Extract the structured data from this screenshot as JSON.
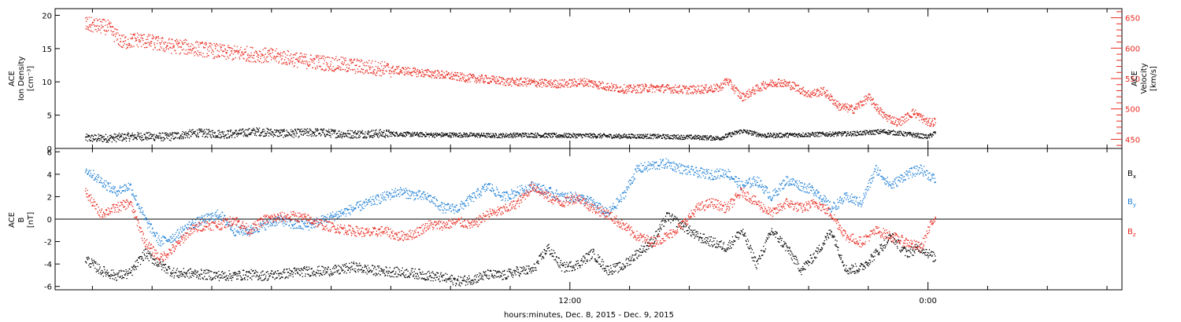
{
  "chart_data": [
    {
      "type": "scatter",
      "panel": "top",
      "left_axis": {
        "label_lines": [
          "ACE",
          "Ion Density",
          "[cm⁻³]"
        ],
        "ylim": [
          0,
          21
        ],
        "ticks": [
          0,
          5,
          10,
          15,
          20
        ]
      },
      "right_axis": {
        "label_lines": [
          "ACE",
          "Velocity",
          "[km/s]"
        ],
        "ylim": [
          435,
          665
        ],
        "ticks": [
          450,
          500,
          550,
          600,
          650
        ],
        "color": "#e8281e"
      },
      "series": [
        {
          "color": "#000000",
          "axis": "left",
          "values": [
            [
              -4.25,
              1.6
            ],
            [
              -3.5,
              1.6
            ],
            [
              -2.5,
              1.9
            ],
            [
              -1.5,
              1.8
            ],
            [
              -0.5,
              2.4
            ],
            [
              0.5,
              2.2
            ],
            [
              1.5,
              2.6
            ],
            [
              2.5,
              2.3
            ],
            [
              3.5,
              2.5
            ],
            [
              4.5,
              2.2
            ],
            [
              5.5,
              2.3
            ],
            [
              6.5,
              2.2
            ],
            [
              7.5,
              2.1
            ],
            [
              8.5,
              2.1
            ],
            [
              9.5,
              2.0
            ],
            [
              10.5,
              2.1
            ],
            [
              11.5,
              2.0
            ],
            [
              12.5,
              2.0
            ],
            [
              13.5,
              1.9
            ],
            [
              14.5,
              1.9
            ],
            [
              15.5,
              1.8
            ],
            [
              16.5,
              1.7
            ],
            [
              17.0,
              1.6
            ],
            [
              17.75,
              2.7
            ],
            [
              18.5,
              2.0
            ],
            [
              19.5,
              2.1
            ],
            [
              20.5,
              2.2
            ],
            [
              21.5,
              2.3
            ],
            [
              22.5,
              2.6
            ],
            [
              23.5,
              2.1
            ],
            [
              24.0,
              1.8
            ],
            [
              24.25,
              2.5
            ]
          ]
        },
        {
          "color": "#e8281e",
          "axis": "right",
          "values": [
            [
              -4.25,
              640
            ],
            [
              -3.5,
              635
            ],
            [
              -3.0,
              610
            ],
            [
              -2.5,
              615
            ],
            [
              -2.0,
              610
            ],
            [
              -1.5,
              605
            ],
            [
              -1.0,
              603
            ],
            [
              -0.5,
              600
            ],
            [
              0.0,
              597
            ],
            [
              0.5,
              593
            ],
            [
              1.0,
              592
            ],
            [
              1.5,
              590
            ],
            [
              2.0,
              588
            ],
            [
              2.5,
              585
            ],
            [
              3.0,
              580
            ],
            [
              3.5,
              578
            ],
            [
              4.0,
              575
            ],
            [
              4.5,
              573
            ],
            [
              5.0,
              570
            ],
            [
              5.5,
              568
            ],
            [
              6.0,
              565
            ],
            [
              6.5,
              563
            ],
            [
              7.0,
              560
            ],
            [
              7.5,
              558
            ],
            [
              8.0,
              555
            ],
            [
              8.5,
              552
            ],
            [
              9.0,
              550
            ],
            [
              9.5,
              548
            ],
            [
              10.0,
              545
            ],
            [
              10.5,
              545
            ],
            [
              11.0,
              543
            ],
            [
              11.5,
              542
            ],
            [
              12.0,
              543
            ],
            [
              12.5,
              545
            ],
            [
              13.0,
              540
            ],
            [
              13.5,
              535
            ],
            [
              14.0,
              533
            ],
            [
              14.5,
              535
            ],
            [
              15.0,
              535
            ],
            [
              16.0,
              532
            ],
            [
              17.0,
              535
            ],
            [
              17.25,
              548
            ],
            [
              17.75,
              520
            ],
            [
              18.5,
              540
            ],
            [
              19.0,
              545
            ],
            [
              19.5,
              538
            ],
            [
              20.0,
              525
            ],
            [
              20.5,
              530
            ],
            [
              21.0,
              505
            ],
            [
              21.5,
              500
            ],
            [
              22.0,
              520
            ],
            [
              22.5,
              490
            ],
            [
              23.0,
              478
            ],
            [
              23.5,
              495
            ],
            [
              24.0,
              478
            ],
            [
              24.25,
              480
            ]
          ]
        }
      ]
    },
    {
      "type": "scatter",
      "panel": "bottom",
      "left_axis": {
        "label_lines": [
          "ACE",
          "B",
          "[nT]"
        ],
        "ylim": [
          -6.3,
          6.3
        ],
        "ticks": [
          -6,
          -4,
          -2,
          0,
          2,
          4,
          6
        ]
      },
      "reference_line": 0,
      "series": [
        {
          "name": "Bx",
          "color": "#000000",
          "values": [
            [
              -4.25,
              -3.5
            ],
            [
              -3.75,
              -4.5
            ],
            [
              -3.25,
              -5.0
            ],
            [
              -2.75,
              -4.8
            ],
            [
              -2.25,
              -3.0
            ],
            [
              -1.75,
              -4.0
            ],
            [
              -1.25,
              -4.8
            ],
            [
              -0.75,
              -4.8
            ],
            [
              -0.25,
              -4.9
            ],
            [
              0.25,
              -5.0
            ],
            [
              0.75,
              -5.0
            ],
            [
              1.25,
              -4.9
            ],
            [
              1.75,
              -5.0
            ],
            [
              2.25,
              -4.9
            ],
            [
              2.75,
              -4.7
            ],
            [
              3.25,
              -4.6
            ],
            [
              3.75,
              -4.6
            ],
            [
              4.25,
              -4.5
            ],
            [
              4.75,
              -4.2
            ],
            [
              5.25,
              -4.5
            ],
            [
              5.75,
              -4.6
            ],
            [
              6.25,
              -4.7
            ],
            [
              6.75,
              -4.8
            ],
            [
              7.25,
              -5.0
            ],
            [
              7.75,
              -5.2
            ],
            [
              8.25,
              -5.5
            ],
            [
              8.75,
              -5.3
            ],
            [
              9.25,
              -4.9
            ],
            [
              9.75,
              -5.0
            ],
            [
              10.25,
              -4.6
            ],
            [
              10.75,
              -4.5
            ],
            [
              11.25,
              -2.5
            ],
            [
              11.75,
              -4.3
            ],
            [
              12.25,
              -4.0
            ],
            [
              12.75,
              -3.0
            ],
            [
              13.25,
              -4.5
            ],
            [
              13.75,
              -4.2
            ],
            [
              14.25,
              -3.0
            ],
            [
              14.75,
              -2.0
            ],
            [
              15.25,
              0.3
            ],
            [
              15.75,
              -0.5
            ],
            [
              16.25,
              -1.5
            ],
            [
              16.75,
              -2.0
            ],
            [
              17.25,
              -2.5
            ],
            [
              17.75,
              -1.0
            ],
            [
              18.25,
              -4.0
            ],
            [
              18.75,
              -1.0
            ],
            [
              19.25,
              -2.5
            ],
            [
              19.75,
              -4.5
            ],
            [
              20.25,
              -3.0
            ],
            [
              20.75,
              -1.0
            ],
            [
              21.25,
              -4.5
            ],
            [
              21.75,
              -4.3
            ],
            [
              22.25,
              -3.0
            ],
            [
              22.75,
              -1.5
            ],
            [
              23.25,
              -3.0
            ],
            [
              23.75,
              -2.5
            ],
            [
              24.25,
              -3.5
            ]
          ]
        },
        {
          "name": "By",
          "color": "#1e7fd6",
          "values": [
            [
              -4.25,
              4.5
            ],
            [
              -3.75,
              3.5
            ],
            [
              -3.25,
              2.5
            ],
            [
              -2.75,
              3.0
            ],
            [
              -2.25,
              0.0
            ],
            [
              -1.75,
              -2.0
            ],
            [
              -1.25,
              -1.5
            ],
            [
              -0.75,
              -0.5
            ],
            [
              -0.25,
              0.0
            ],
            [
              0.25,
              0.5
            ],
            [
              0.75,
              -1.0
            ],
            [
              1.25,
              -1.0
            ],
            [
              1.75,
              -0.5
            ],
            [
              2.25,
              0.0
            ],
            [
              2.75,
              -0.5
            ],
            [
              3.25,
              -0.5
            ],
            [
              3.75,
              0.0
            ],
            [
              4.25,
              0.5
            ],
            [
              4.75,
              1.0
            ],
            [
              5.25,
              1.5
            ],
            [
              5.75,
              2.0
            ],
            [
              6.25,
              2.5
            ],
            [
              6.75,
              2.2
            ],
            [
              7.25,
              2.0
            ],
            [
              7.75,
              1.0
            ],
            [
              8.25,
              1.0
            ],
            [
              8.75,
              2.0
            ],
            [
              9.25,
              3.0
            ],
            [
              9.75,
              2.0
            ],
            [
              10.25,
              2.5
            ],
            [
              10.75,
              3.0
            ],
            [
              11.25,
              2.5
            ],
            [
              11.75,
              2.0
            ],
            [
              12.25,
              2.0
            ],
            [
              12.75,
              1.5
            ],
            [
              13.25,
              0.5
            ],
            [
              13.75,
              2.0
            ],
            [
              14.25,
              4.5
            ],
            [
              14.75,
              4.8
            ],
            [
              15.25,
              5.0
            ],
            [
              15.75,
              4.5
            ],
            [
              16.25,
              4.2
            ],
            [
              16.75,
              4.0
            ],
            [
              17.25,
              4.2
            ],
            [
              17.75,
              3.0
            ],
            [
              18.25,
              3.5
            ],
            [
              18.75,
              2.0
            ],
            [
              19.25,
              3.5
            ],
            [
              19.75,
              3.0
            ],
            [
              20.25,
              2.5
            ],
            [
              20.75,
              1.0
            ],
            [
              21.25,
              2.0
            ],
            [
              21.75,
              1.5
            ],
            [
              22.25,
              4.5
            ],
            [
              22.75,
              3.0
            ],
            [
              23.25,
              4.0
            ],
            [
              23.75,
              4.5
            ],
            [
              24.25,
              3.5
            ]
          ]
        },
        {
          "name": "Bz",
          "color": "#e8281e",
          "values": [
            [
              -4.25,
              2.5
            ],
            [
              -3.75,
              0.5
            ],
            [
              -3.25,
              1.0
            ],
            [
              -2.75,
              1.5
            ],
            [
              -2.25,
              -2.0
            ],
            [
              -1.75,
              -3.5
            ],
            [
              -1.25,
              -2.5
            ],
            [
              -0.75,
              -1.0
            ],
            [
              -0.25,
              -0.5
            ],
            [
              0.25,
              -0.5
            ],
            [
              0.75,
              0.0
            ],
            [
              1.25,
              -1.0
            ],
            [
              1.75,
              0.0
            ],
            [
              2.25,
              0.2
            ],
            [
              2.75,
              0.3
            ],
            [
              3.25,
              0.0
            ],
            [
              3.75,
              -0.5
            ],
            [
              4.25,
              -0.8
            ],
            [
              4.75,
              -1.0
            ],
            [
              5.25,
              -1.2
            ],
            [
              5.75,
              -1.0
            ],
            [
              6.25,
              -1.5
            ],
            [
              6.75,
              -1.3
            ],
            [
              7.25,
              -0.5
            ],
            [
              7.75,
              -0.5
            ],
            [
              8.25,
              -0.2
            ],
            [
              8.75,
              -0.5
            ],
            [
              9.25,
              0.5
            ],
            [
              9.75,
              0.8
            ],
            [
              10.25,
              1.5
            ],
            [
              10.75,
              3.0
            ],
            [
              11.25,
              2.0
            ],
            [
              11.75,
              1.5
            ],
            [
              12.25,
              2.0
            ],
            [
              12.75,
              1.0
            ],
            [
              13.25,
              0.5
            ],
            [
              13.75,
              -0.5
            ],
            [
              14.25,
              -1.5
            ],
            [
              14.75,
              -2.0
            ],
            [
              15.25,
              -1.5
            ],
            [
              15.75,
              -0.5
            ],
            [
              16.25,
              1.0
            ],
            [
              16.75,
              1.5
            ],
            [
              17.25,
              1.0
            ],
            [
              17.75,
              2.5
            ],
            [
              18.25,
              1.5
            ],
            [
              18.75,
              0.5
            ],
            [
              19.25,
              1.5
            ],
            [
              19.75,
              1.0
            ],
            [
              20.25,
              1.5
            ],
            [
              20.75,
              0.5
            ],
            [
              21.25,
              -1.5
            ],
            [
              21.75,
              -2.0
            ],
            [
              22.25,
              -1.0
            ],
            [
              22.75,
              -1.5
            ],
            [
              23.25,
              -2.0
            ],
            [
              23.75,
              -2.5
            ],
            [
              24.25,
              0.5
            ]
          ]
        }
      ]
    }
  ],
  "x_axis": {
    "label": "hours:minutes, Dec.  8, 2015 - Dec.  9, 2015",
    "range_hours": [
      -5.25,
      30.5
    ],
    "tick_labels": [
      {
        "value": 12,
        "text": "12:00"
      },
      {
        "value": 24,
        "text": "0:00"
      }
    ],
    "tick_step_hours": 2
  },
  "legend_labels": [
    {
      "base": "B",
      "sub": "x",
      "color": "#000000"
    },
    {
      "base": "B",
      "sub": "y",
      "color": "#1e7fd6"
    },
    {
      "base": "B",
      "sub": "z",
      "color": "#e8281e"
    }
  ]
}
